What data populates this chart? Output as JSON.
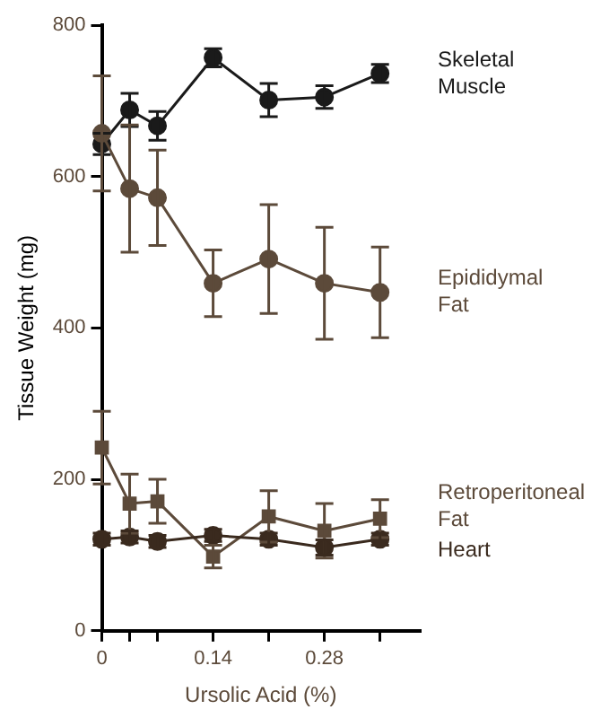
{
  "chart_data": {
    "type": "line",
    "xlabel": "Ursolic Acid (%)",
    "ylabel": "Tissue Weight (mg)",
    "x": [
      0,
      0.035,
      0.07,
      0.14,
      0.21,
      0.28,
      0.35
    ],
    "xlim": [
      0,
      0.4
    ],
    "xticks": [
      0,
      {
        "value": 0.035,
        "label": null
      },
      {
        "value": 0.07,
        "label": null
      },
      0.14,
      {
        "value": 0.21,
        "label": null
      },
      0.28,
      {
        "value": 0.35,
        "label": null
      }
    ],
    "ylim": [
      0,
      800
    ],
    "yticks": [
      0,
      200,
      400,
      600,
      800
    ],
    "grid": false,
    "legend": false,
    "series": [
      {
        "name": "Skeletal Muscle",
        "color": "#1a1a1a",
        "marker": "circle",
        "values": [
          643,
          688,
          667,
          757,
          701,
          705,
          736
        ],
        "errors": [
          14,
          22,
          19,
          12,
          22,
          15,
          12
        ]
      },
      {
        "name": "Epididymal Fat",
        "color": "#5c4a3a",
        "marker": "circle",
        "values": [
          657,
          584,
          572,
          459,
          491,
          459,
          447
        ],
        "errors": [
          76,
          84,
          63,
          44,
          72,
          74,
          60
        ]
      },
      {
        "name": "Retroperitoneal Fat",
        "color": "#5c4a3a",
        "marker": "square",
        "values": [
          242,
          168,
          171,
          98,
          151,
          132,
          148
        ],
        "errors": [
          48,
          39,
          29,
          15,
          34,
          36,
          25
        ]
      },
      {
        "name": "Heart",
        "color": "#3a2a1e",
        "marker": "circle",
        "values": [
          121,
          124,
          118,
          126,
          121,
          110,
          121
        ],
        "errors": [
          8,
          8,
          8,
          8,
          8,
          10,
          8
        ]
      }
    ]
  }
}
